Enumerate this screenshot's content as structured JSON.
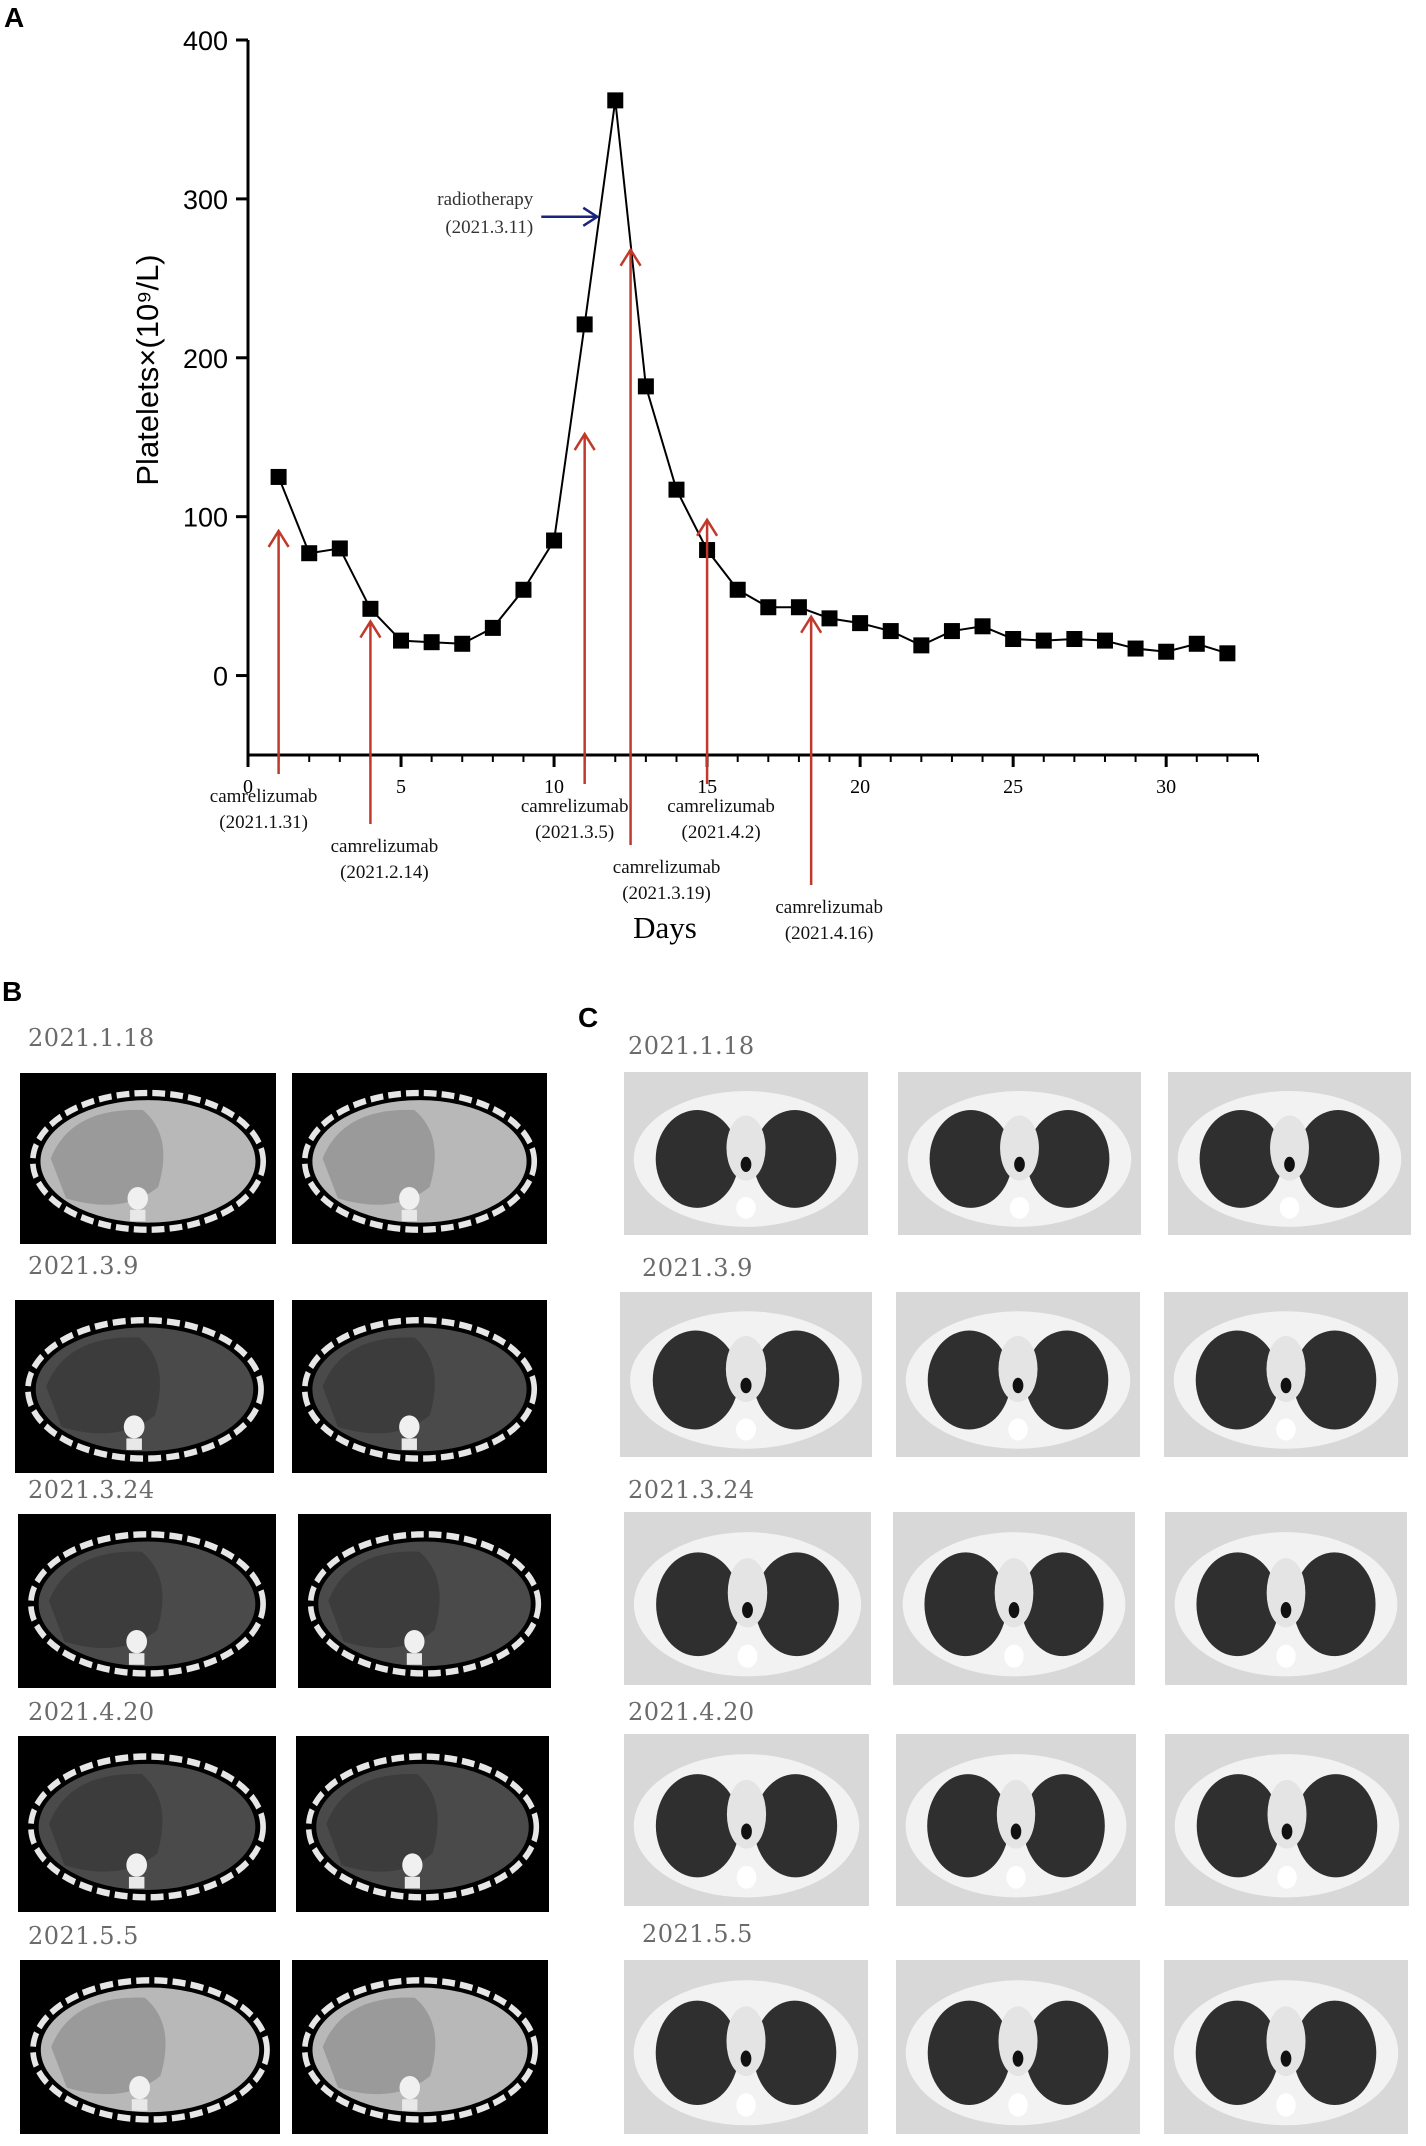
{
  "panels": {
    "a": "A",
    "b": "B",
    "c": "C"
  },
  "chart_data": {
    "type": "line",
    "xlabel": "Days",
    "ylabel": "Platelets×(10⁹/L)",
    "xlim": [
      0,
      33
    ],
    "ylim": [
      -50,
      400
    ],
    "x_ticks": [
      0,
      5,
      10,
      15,
      20,
      25,
      30
    ],
    "y_ticks": [
      0,
      100,
      200,
      300,
      400
    ],
    "series": [
      {
        "x": [
          1,
          2,
          3,
          4,
          5,
          6,
          7,
          8,
          9,
          10,
          11,
          12,
          13,
          14,
          15,
          16,
          17,
          18,
          19,
          20,
          21,
          22,
          23,
          24,
          25,
          26,
          27,
          28,
          29,
          30,
          31,
          32
        ],
        "y": [
          125,
          77,
          80,
          42,
          22,
          21,
          20,
          30,
          54,
          85,
          221,
          362,
          182,
          117,
          79,
          54,
          43,
          43,
          36,
          33,
          28,
          19,
          28,
          31,
          23,
          22,
          23,
          22,
          17,
          15,
          20,
          14
        ],
        "color": "#000000"
      }
    ],
    "annotations": [
      {
        "label": "camrelizumab",
        "date": "(2021.1.31)",
        "x": 1,
        "arrow_tip_y": 91,
        "color": "#c0392b"
      },
      {
        "label": "camrelizumab",
        "date": "(2021.2.14)",
        "x": 4,
        "arrow_tip_y": 34,
        "color": "#c0392b"
      },
      {
        "label": "camrelizumab",
        "date": "(2021.3.5)",
        "x": 11,
        "arrow_tip_y": 152,
        "color": "#c0392b"
      },
      {
        "label": "camrelizumab",
        "date": "(2021.3.19)",
        "x": 12.5,
        "arrow_tip_y": 268,
        "color": "#c0392b"
      },
      {
        "label": "camrelizumab",
        "date": "(2021.4.2)",
        "x": 15,
        "arrow_tip_y": 98,
        "color": "#c0392b"
      },
      {
        "label": "camrelizumab",
        "date": "(2021.4.16)",
        "x": 18.4,
        "arrow_tip_y": 37,
        "color": "#c0392b"
      },
      {
        "label": "radiotherapy",
        "date": "(2021.3.11)",
        "x": 12,
        "y": 290,
        "color": "#1a237e"
      }
    ]
  },
  "panel_b": {
    "dates": [
      "2021.1.18",
      "2021.3.9",
      "2021.3.24",
      "2021.4.20",
      "2021.5.5"
    ]
  },
  "panel_c": {
    "dates": [
      "2021.1.18",
      "2021.3.9",
      "2021.3.24",
      "2021.4.20",
      "2021.5.5"
    ]
  }
}
